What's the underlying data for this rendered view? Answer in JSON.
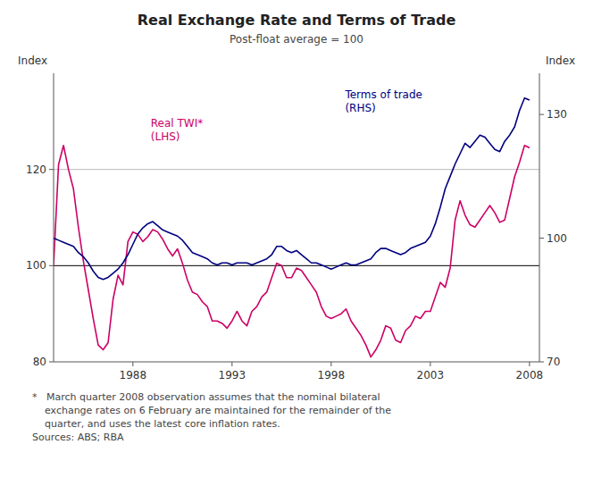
{
  "chart_data": {
    "type": "line",
    "title": "Real Exchange Rate and Terms of Trade",
    "subtitle": "Post-float average = 100",
    "y_label": "Index",
    "y2_label": "Index",
    "footnote": "*   March quarter 2008 observation assumes that the nominal bilateral\n    exchange rates on 6 February are maintained for the remainder of the\n    quarter, and uses the latest core inflation rates.\nSources: ABS; RBA",
    "xlim": [
      1984.0,
      2008.5
    ],
    "xticks": [
      1988,
      1993,
      1998,
      2003,
      2008
    ],
    "ylim": [
      80,
      140
    ],
    "yticks": [
      80,
      100,
      120
    ],
    "y2lim": [
      70,
      140
    ],
    "y2ticks": [
      70,
      100,
      130
    ],
    "reference_lines": [
      {
        "value": 100,
        "color": "#000000"
      },
      {
        "value": 120,
        "color": "#aaaaaa"
      }
    ],
    "x": [
      1984.0,
      1984.25,
      1984.5,
      1984.75,
      1985.0,
      1985.25,
      1985.5,
      1985.75,
      1986.0,
      1986.25,
      1986.5,
      1986.75,
      1987.0,
      1987.25,
      1987.5,
      1987.75,
      1988.0,
      1988.25,
      1988.5,
      1988.75,
      1989.0,
      1989.25,
      1989.5,
      1989.75,
      1990.0,
      1990.25,
      1990.5,
      1990.75,
      1991.0,
      1991.25,
      1991.5,
      1991.75,
      1992.0,
      1992.25,
      1992.5,
      1992.75,
      1993.0,
      1993.25,
      1993.5,
      1993.75,
      1994.0,
      1994.25,
      1994.5,
      1994.75,
      1995.0,
      1995.25,
      1995.5,
      1995.75,
      1996.0,
      1996.25,
      1996.5,
      1996.75,
      1997.0,
      1997.25,
      1997.5,
      1997.75,
      1998.0,
      1998.25,
      1998.5,
      1998.75,
      1999.0,
      1999.25,
      1999.5,
      1999.75,
      2000.0,
      2000.25,
      2000.5,
      2000.75,
      2001.0,
      2001.25,
      2001.5,
      2001.75,
      2002.0,
      2002.25,
      2002.5,
      2002.75,
      2003.0,
      2003.25,
      2003.5,
      2003.75,
      2004.0,
      2004.25,
      2004.5,
      2004.75,
      2005.0,
      2005.25,
      2005.5,
      2005.75,
      2006.0,
      2006.25,
      2006.5,
      2006.75,
      2007.0,
      2007.25,
      2007.5,
      2007.75,
      2008.0
    ],
    "series": [
      {
        "name": "Real TWI*\n(LHS)",
        "color": "#CC0066",
        "values": [
          100.0,
          121.0,
          125.0,
          120.0,
          116.0,
          108.0,
          101.0,
          95.0,
          89.0,
          83.5,
          82.5,
          84.0,
          93.0,
          98.0,
          96.0,
          105.0,
          107.0,
          106.5,
          105.0,
          106.0,
          107.5,
          107.0,
          105.5,
          103.5,
          102.0,
          103.5,
          100.5,
          97.0,
          94.5,
          94.0,
          92.5,
          91.5,
          88.5,
          88.5,
          88.0,
          87.0,
          88.5,
          90.5,
          88.5,
          87.5,
          90.5,
          91.5,
          93.5,
          94.5,
          97.5,
          100.5,
          100.0,
          97.5,
          97.5,
          99.5,
          99.0,
          97.5,
          96.0,
          94.5,
          91.5,
          89.5,
          89.0,
          89.5,
          90.0,
          91.0,
          88.5,
          87.0,
          85.5,
          83.5,
          81.0,
          82.5,
          84.5,
          87.5,
          87.0,
          84.5,
          84.0,
          86.5,
          87.5,
          89.5,
          89.0,
          90.5,
          90.5,
          93.5,
          96.5,
          95.5,
          99.5,
          109.5,
          113.5,
          110.5,
          108.5,
          108.0,
          109.5,
          111.0,
          112.5,
          111.0,
          109.0,
          109.5,
          114.0,
          118.5,
          121.5,
          125.0,
          124.5
        ]
      },
      {
        "name": "Terms of trade\n(RHS)",
        "color": "#000080",
        "axis": "y2",
        "values": [
          100.0,
          99.5,
          99.0,
          98.5,
          98.0,
          96.5,
          95.5,
          94.0,
          92.0,
          90.5,
          90.0,
          90.5,
          91.5,
          92.5,
          94.0,
          96.0,
          98.5,
          101.0,
          102.5,
          103.5,
          104.0,
          103.0,
          102.0,
          101.5,
          101.0,
          100.5,
          99.5,
          98.0,
          96.5,
          96.0,
          95.5,
          95.0,
          94.0,
          93.5,
          94.0,
          94.0,
          93.5,
          94.0,
          94.0,
          94.0,
          93.5,
          94.0,
          94.5,
          95.0,
          96.0,
          98.0,
          98.0,
          97.0,
          96.5,
          97.0,
          96.0,
          95.0,
          94.0,
          94.0,
          93.5,
          93.0,
          92.5,
          93.0,
          93.5,
          94.0,
          93.5,
          93.5,
          94.0,
          94.5,
          95.0,
          96.5,
          97.5,
          97.5,
          97.0,
          96.5,
          96.0,
          96.5,
          97.5,
          98.0,
          98.5,
          99.0,
          100.5,
          103.5,
          107.5,
          112.0,
          115.0,
          118.0,
          120.5,
          123.0,
          122.0,
          123.5,
          125.0,
          124.5,
          123.0,
          121.5,
          121.0,
          123.5,
          125.0,
          127.0,
          131.0,
          134.0,
          133.5
        ]
      }
    ]
  }
}
